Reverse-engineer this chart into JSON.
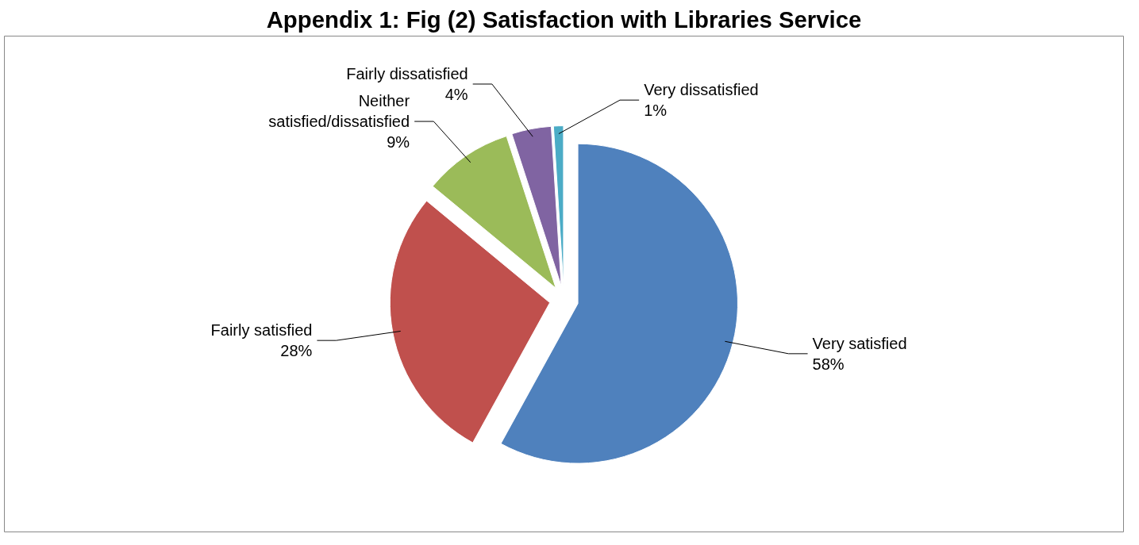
{
  "chart_data": {
    "type": "pie",
    "title": "Appendix 1: Fig (2) Satisfaction with Libraries Service",
    "categories": [
      "Very satisfied",
      "Fairly satisfied",
      "Neither\nsatisfied/dissatisfied",
      "Fairly dissatisfied",
      "Very dissatisfied"
    ],
    "values": [
      58,
      28,
      9,
      4,
      1
    ],
    "value_labels": [
      "58%",
      "28%",
      "9%",
      "4%",
      "1%"
    ],
    "colors": [
      "#4f81bd",
      "#c0504d",
      "#9bbb59",
      "#8064a2",
      "#4bacc6"
    ],
    "legend": false
  }
}
